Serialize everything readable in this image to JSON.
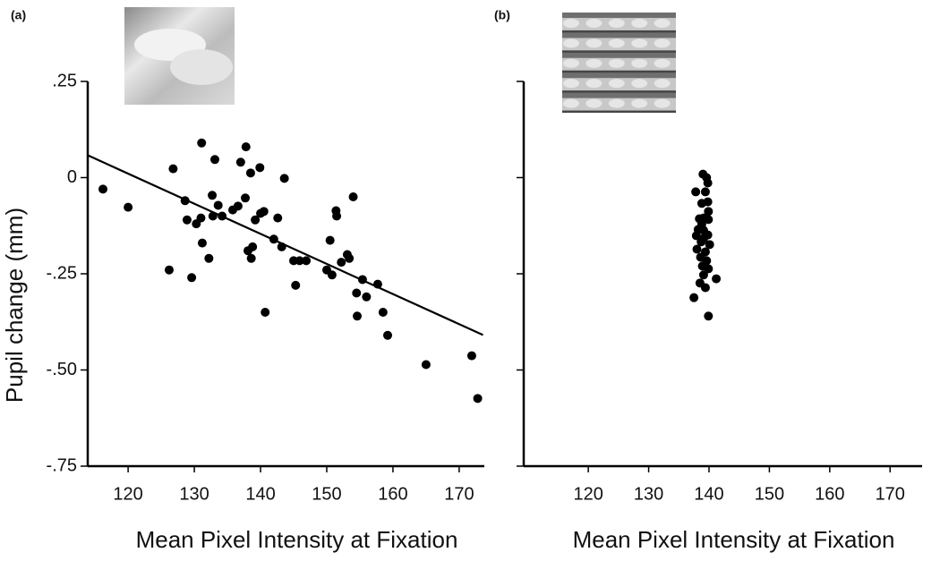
{
  "chart_data": [
    {
      "type": "scatter",
      "panel_label": "(a)",
      "x_label": "Mean Pixel Intensity at Fixation",
      "y_label": "Pupil change (mm)",
      "color": "#000000",
      "ytick_labels": true,
      "xlim": [
        113.9,
        173.8
      ],
      "ylim": [
        -0.75,
        0.25
      ],
      "xticks": [
        120,
        130,
        140,
        150,
        160,
        170
      ],
      "yticks": [
        {
          "value": 0.25,
          "label": ".25"
        },
        0,
        {
          "value": -0.25,
          "label": "-.25"
        },
        {
          "value": -0.5,
          "label": "-.50"
        },
        {
          "value": -0.75,
          "label": "-.75"
        }
      ],
      "x": [
        116.2,
        120,
        126.2,
        126.8,
        128.6,
        128.9,
        129.6,
        130.3,
        131,
        131.1,
        131.2,
        132.2,
        132.7,
        132.8,
        133.1,
        133.6,
        134.2,
        135.8,
        136.6,
        137,
        137.7,
        137.8,
        138.1,
        138.5,
        138.6,
        138.8,
        139.2,
        139.9,
        140,
        140.5,
        140.7,
        142,
        142.6,
        143.2,
        143.6,
        145,
        145.3,
        145.9,
        146.9,
        150,
        150.5,
        150.8,
        151.4,
        151.5,
        152.2,
        153.1,
        153.4,
        154,
        154.5,
        154.6,
        155.4,
        156,
        157.7,
        158.5,
        159.2,
        165,
        171.9,
        172.8
      ],
      "values": [
        -0.03,
        -0.077,
        -0.24,
        0.023,
        -0.06,
        -0.11,
        -0.26,
        -0.12,
        -0.105,
        0.09,
        -0.17,
        -0.21,
        -0.046,
        -0.1,
        0.047,
        -0.072,
        -0.1,
        -0.084,
        -0.074,
        0.04,
        -0.053,
        0.08,
        -0.19,
        0.012,
        -0.21,
        -0.18,
        -0.11,
        0.026,
        -0.093,
        -0.088,
        -0.35,
        -0.16,
        -0.105,
        -0.18,
        -0.002,
        -0.216,
        -0.28,
        -0.216,
        -0.216,
        -0.24,
        -0.163,
        -0.253,
        -0.086,
        -0.1,
        -0.22,
        -0.2,
        -0.21,
        -0.05,
        -0.3,
        -0.36,
        -0.265,
        -0.31,
        -0.277,
        -0.35,
        -0.41,
        -0.486,
        -0.463,
        -0.574
      ],
      "fit_line": {
        "x": [
          113.9,
          173.6
        ],
        "y": [
          0.058,
          -0.409
        ]
      }
    },
    {
      "type": "scatter",
      "panel_label": "(b)",
      "x_label": "Mean Pixel Intensity at Fixation",
      "color": "#000000",
      "ytick_labels": false,
      "xlim": [
        109.3,
        175.3
      ],
      "ylim": [
        -0.75,
        0.25
      ],
      "xticks": [
        120,
        130,
        140,
        150,
        160,
        170
      ],
      "yticks": [
        0.25,
        0,
        -0.25,
        -0.5,
        -0.75
      ],
      "x": [
        139,
        139.6,
        137.8,
        139.8,
        139.4,
        139.8,
        138.8,
        139.9,
        139.1,
        138.4,
        139.9,
        138.2,
        139.1,
        137.9,
        139.8,
        138.7,
        140.1,
        138,
        139.4,
        138.6,
        139.6,
        138.9,
        139.9,
        139.1,
        141.2,
        138.5,
        139.4,
        137.5,
        139.9,
        139.1,
        138.8
      ],
      "values": [
        0.009,
        0,
        -0.037,
        -0.014,
        -0.037,
        -0.063,
        -0.067,
        -0.088,
        -0.105,
        -0.107,
        -0.109,
        -0.135,
        -0.137,
        -0.151,
        -0.149,
        -0.167,
        -0.174,
        -0.186,
        -0.193,
        -0.207,
        -0.216,
        -0.23,
        -0.237,
        -0.253,
        -0.263,
        -0.274,
        -0.286,
        -0.312,
        -0.36,
        -0.158,
        -0.121
      ]
    }
  ]
}
